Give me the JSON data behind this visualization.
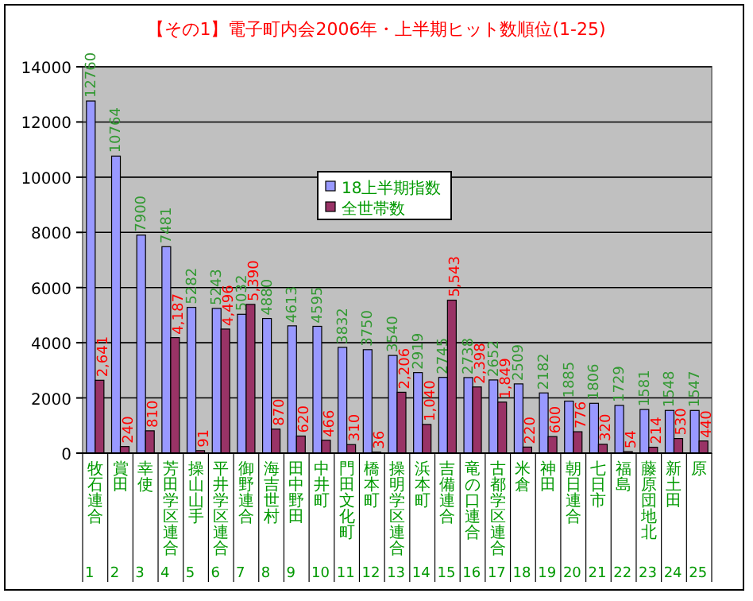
{
  "chart_data": {
    "type": "bar",
    "title": "【その1】電子町内会2006年・上半期ヒット数順位(1-25)",
    "categories": [
      "牧石連合",
      "賞田",
      "幸使",
      "芳田学区連合",
      "操山山手",
      "平井学区連合",
      "御野連合",
      "海吉世村",
      "田中野田",
      "中井町",
      "門田文化町",
      "橋本町",
      "操明学区連合",
      "浜本町",
      "吉備連合",
      "竜の口連合",
      "古都学区連合",
      "米倉",
      "神田",
      "朝日連合",
      "七日市",
      "福島",
      "藤原団地北",
      "新土田",
      "原"
    ],
    "series": [
      {
        "name": "18上半期指数",
        "color": "#9999ff",
        "values": [
          12760,
          10764,
          7900,
          7481,
          5282,
          5243,
          5032,
          4880,
          4613,
          4595,
          3832,
          3750,
          3540,
          2919,
          2745,
          2738,
          2652,
          2509,
          2182,
          1885,
          1806,
          1729,
          1581,
          1548,
          1547
        ],
        "value_labels": [
          "12760",
          "10764",
          "7900",
          "7481",
          "5282",
          "5243",
          "5032",
          "4880",
          "4613",
          "4595",
          "3832",
          "3750",
          "3540",
          "2919",
          "2745",
          "2738",
          "2652",
          "2509",
          "2182",
          "1885",
          "1806",
          "1729",
          "1581",
          "1548",
          "1547"
        ]
      },
      {
        "name": "全世帯数",
        "color": "#993366",
        "values": [
          2641,
          240,
          810,
          4187,
          91,
          4496,
          5390,
          870,
          620,
          466,
          310,
          36,
          2206,
          1040,
          5543,
          2398,
          1849,
          220,
          600,
          776,
          320,
          54,
          214,
          530,
          440
        ],
        "value_labels": [
          "2,641",
          "240",
          "810",
          "4,187",
          "91",
          "4,496",
          "5,390",
          "870",
          "620",
          "466",
          "310",
          "36",
          "2,206",
          "1,040",
          "5,543",
          "2,398",
          "1,849",
          "220",
          "600",
          "776",
          "320",
          "54",
          "214",
          "530",
          "440"
        ]
      }
    ],
    "annotations": [
      "1",
      "2",
      "3",
      "4",
      "5",
      "6",
      "7",
      "8",
      "9",
      "10",
      "11",
      "12",
      "13",
      "14",
      "15",
      "16",
      "17",
      "18",
      "19",
      "20",
      "21",
      "22",
      "23",
      "24",
      "25"
    ],
    "ylim": [
      0,
      14000
    ],
    "yticks": [
      0,
      2000,
      4000,
      6000,
      8000,
      10000,
      12000,
      14000
    ],
    "grid": "y",
    "legend": "top"
  }
}
